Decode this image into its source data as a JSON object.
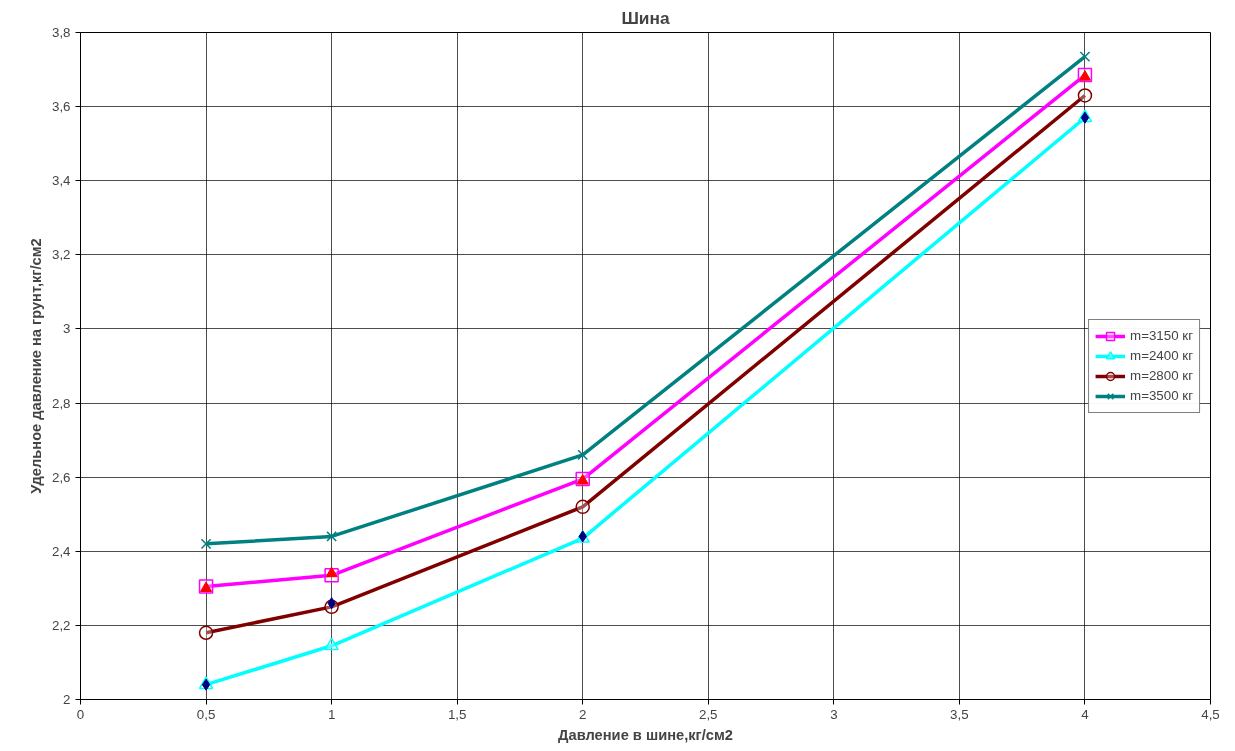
{
  "chart_data": {
    "type": "line",
    "title": "Шина",
    "xlabel": "Давление в шине,кг/см2",
    "ylabel": "Удельное давление на грунт,кг/см2",
    "x": [
      0.5,
      1,
      2,
      4
    ],
    "series": [
      {
        "name": "m=3150 кг",
        "color": "#ff00ff",
        "marker": "square",
        "values": [
          2.305,
          2.335,
          2.595,
          3.685
        ]
      },
      {
        "name": "m=2400 кг",
        "color": "#00ffff",
        "marker": "triangle",
        "values": [
          2.04,
          2.145,
          2.435,
          3.57
        ]
      },
      {
        "name": "m=2800 кг",
        "color": "#800000",
        "marker": "circle",
        "values": [
          2.18,
          2.25,
          2.52,
          3.63
        ]
      },
      {
        "name": "m=3500 кг",
        "color": "#008080",
        "marker": "cross",
        "values": [
          2.42,
          2.44,
          2.66,
          3.735
        ]
      },
      {
        "type": "scatter",
        "color": "#ff0000",
        "marker": "triangle",
        "values": [
          2.3,
          2.34,
          2.59,
          3.68
        ]
      },
      {
        "type": "scatter",
        "color": "#000080",
        "marker": "diamond",
        "values": [
          2.04,
          2.26,
          2.44,
          3.57
        ]
      }
    ],
    "xlim": [
      0,
      4.5
    ],
    "ylim": [
      2,
      3.8
    ],
    "xticks": [
      0,
      {
        "value": 0.5,
        "label": "0,5"
      },
      1,
      {
        "value": 1.5,
        "label": "1,5"
      },
      2,
      {
        "value": 2.5,
        "label": "2,5"
      },
      3,
      {
        "value": 3.5,
        "label": "3,5"
      },
      4,
      {
        "value": 4.5,
        "label": "4,5"
      }
    ],
    "yticks": [
      2,
      {
        "value": 2.2,
        "label": "2,2"
      },
      {
        "value": 2.4,
        "label": "2,4"
      },
      {
        "value": 2.6,
        "label": "2,6"
      },
      {
        "value": 2.8,
        "label": "2,8"
      },
      3,
      {
        "value": 3.2,
        "label": "3,2"
      },
      {
        "value": 3.4,
        "label": "3,4"
      },
      {
        "value": 3.6,
        "label": "3,6"
      },
      {
        "value": 3.8,
        "label": "3,8"
      }
    ],
    "grid": true,
    "legend": "right",
    "line_style": "solid"
  }
}
